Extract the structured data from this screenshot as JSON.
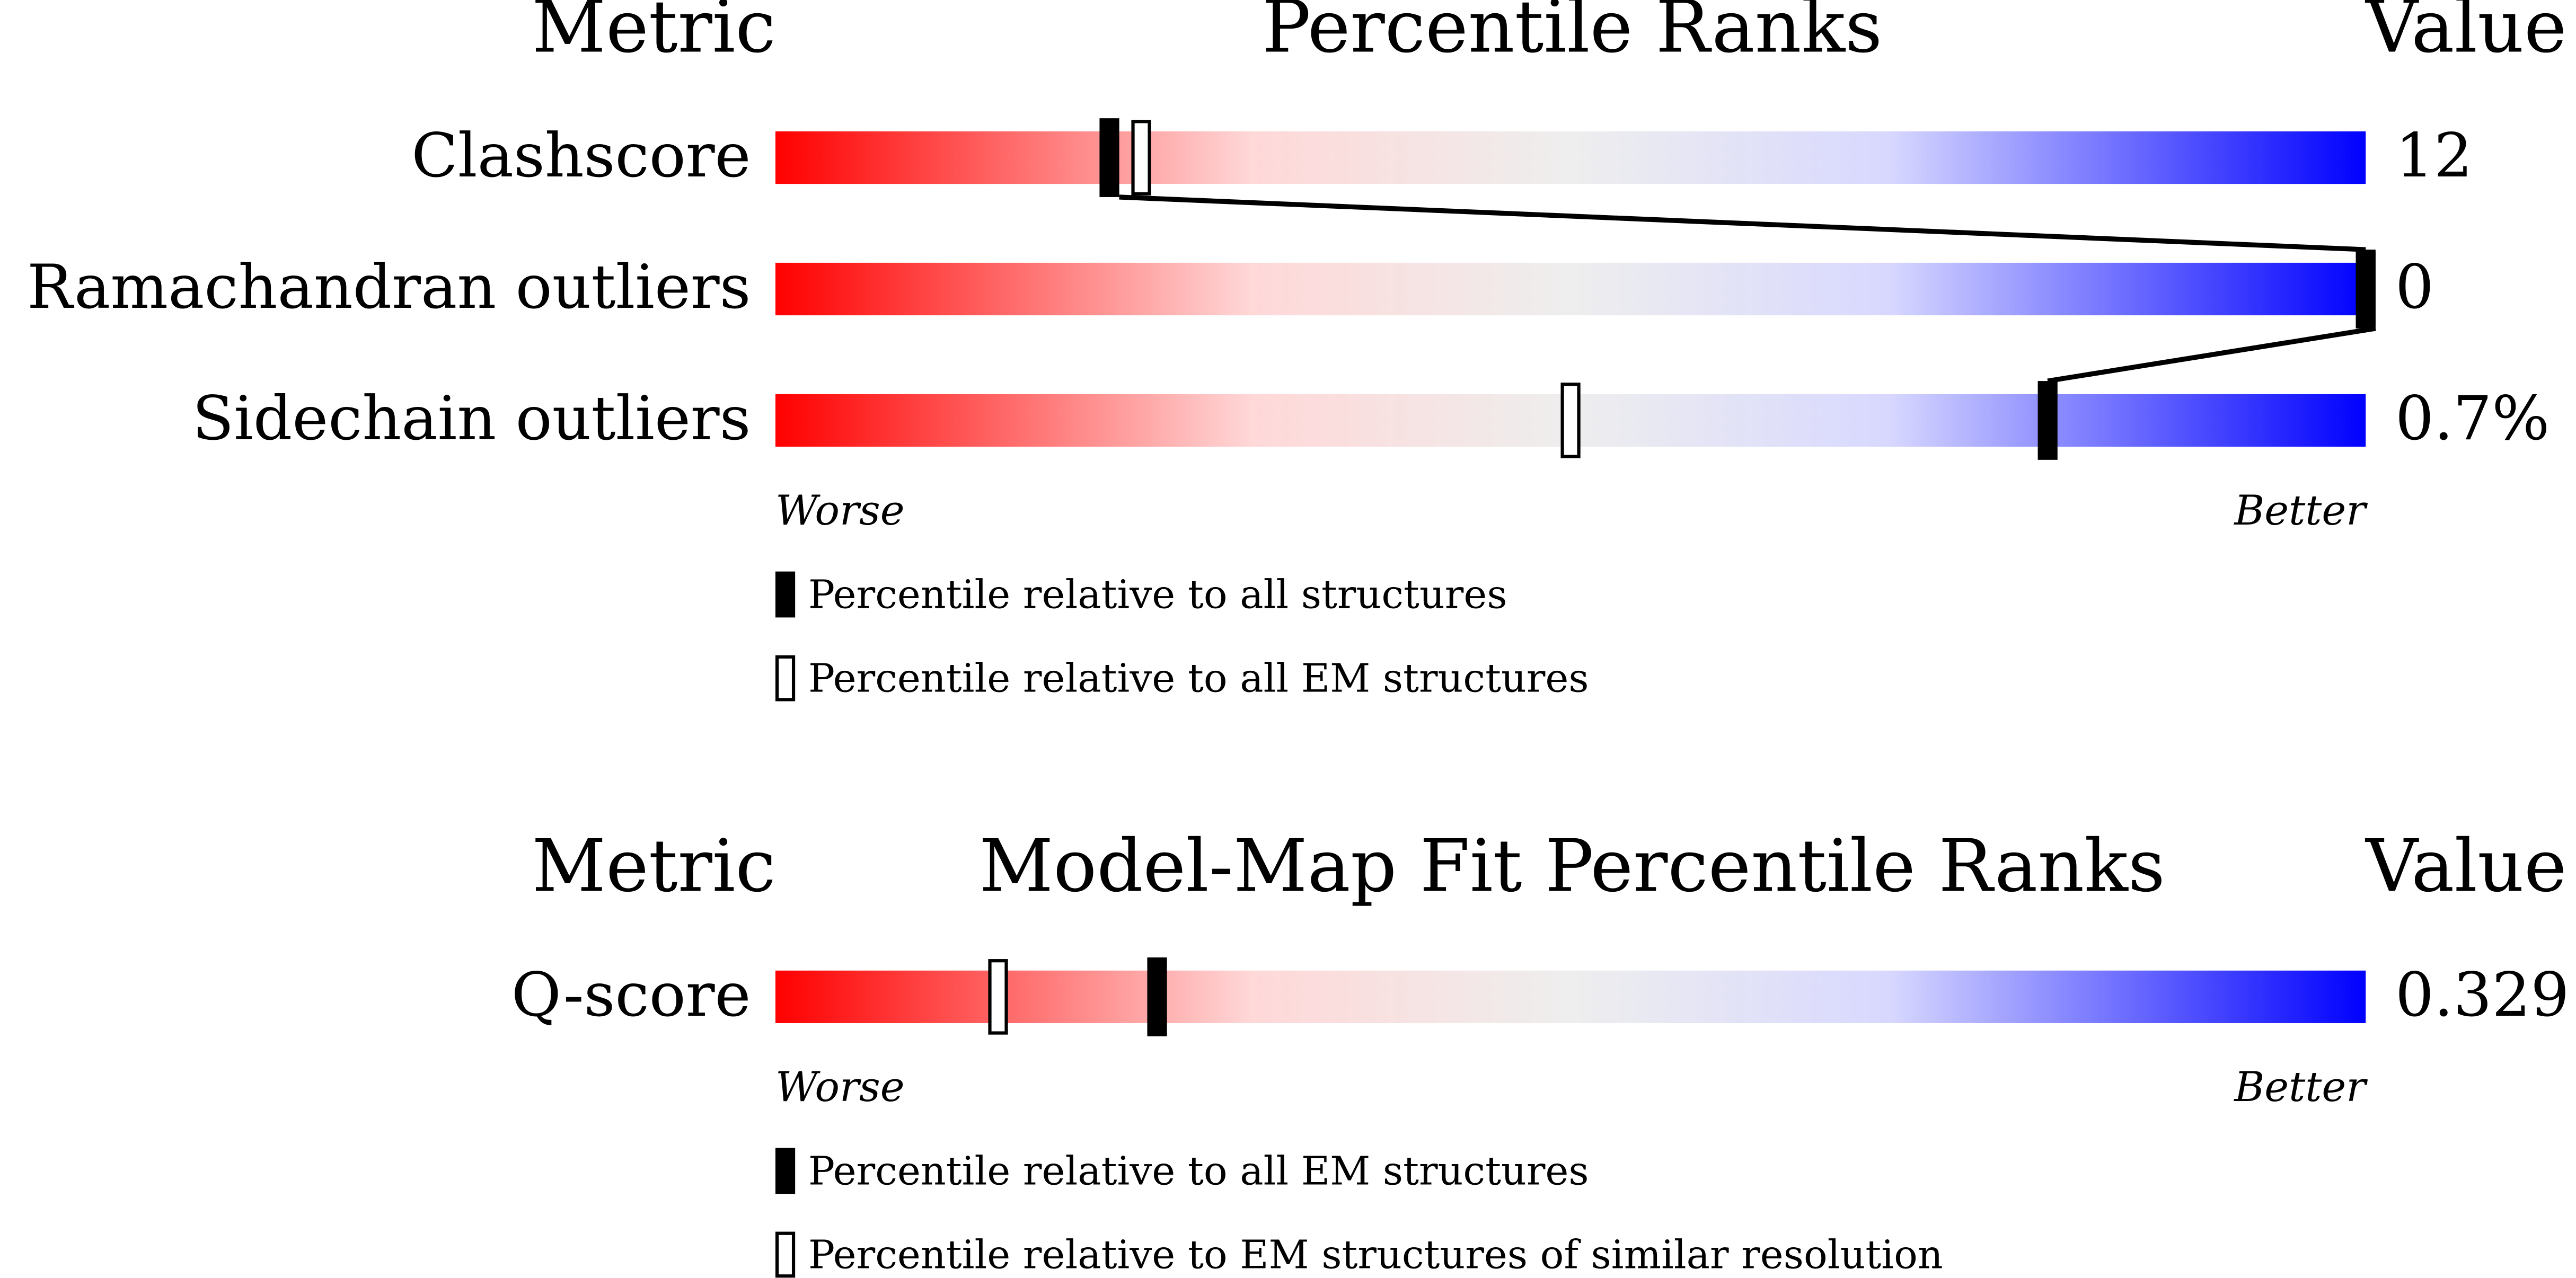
{
  "panels": [
    {
      "header": {
        "metric": "Metric",
        "title": "Percentile Ranks",
        "value": "Value"
      },
      "rows": [
        {
          "label": "Clashscore",
          "value": "12",
          "percentiles": [
            21,
            23
          ]
        },
        {
          "label": "Ramachandran outliers",
          "value": "0",
          "percentiles": [
            100,
            100
          ]
        },
        {
          "label": "Sidechain outliers",
          "value": "0.7%",
          "percentiles": [
            80,
            50
          ]
        }
      ],
      "scale": {
        "worse": "Worse",
        "better": "Better"
      },
      "legend": [
        "Percentile relative to all structures",
        "Percentile relative to all EM structures"
      ]
    },
    {
      "header": {
        "metric": "Metric",
        "title": "Model-Map Fit Percentile Ranks",
        "value": "Value"
      },
      "rows": [
        {
          "label": "Q-score",
          "value": "0.329",
          "percentiles": [
            24,
            14
          ]
        }
      ],
      "scale": {
        "worse": "Worse",
        "better": "Better"
      },
      "legend": [
        "Percentile relative to all EM structures",
        "Percentile relative to EM structures of similar resolution"
      ]
    }
  ]
}
